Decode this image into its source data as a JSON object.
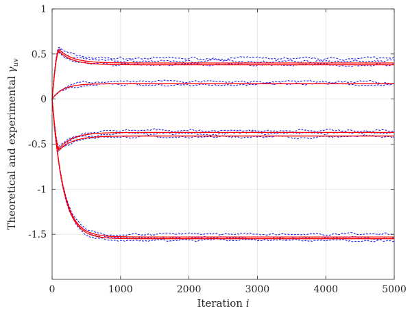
{
  "chart_data": {
    "type": "line",
    "title": "",
    "xlabel": "Iteration i",
    "xlabel_text": "Iteration ",
    "xlabel_var": "i",
    "ylabel": "Theoretical and experimental γ_uv",
    "ylabel_text": "Theoretical and experimental ",
    "ylabel_var": "γ",
    "ylabel_sub": "uv",
    "xlim": [
      0,
      5000
    ],
    "ylim": [
      -2,
      1
    ],
    "xticks": [
      0,
      1000,
      2000,
      3000,
      4000,
      5000
    ],
    "xtick_labels": [
      "0",
      "1000",
      "2000",
      "3000",
      "4000",
      "5000"
    ],
    "yticks": [
      1,
      0.5,
      0,
      -0.5,
      -1,
      -1.5
    ],
    "ytick_labels": [
      "1",
      "0.5",
      "0",
      "-0.5",
      "-1",
      "-1.5"
    ],
    "grid": true,
    "legend": "none",
    "theoretical_color": "#ff0000",
    "experimental_color": "#2222ee",
    "series": [
      {
        "kind": "theoretical",
        "steady": 0.38,
        "peak": 0.53,
        "peak_x": 100
      },
      {
        "kind": "theoretical",
        "steady": 0.4,
        "peak": 0.55,
        "peak_x": 100
      },
      {
        "kind": "theoretical",
        "steady": 0.17,
        "peak": 0.17,
        "peak_x": 0
      },
      {
        "kind": "theoretical",
        "steady": -0.37,
        "peak": -0.55,
        "peak_x": 100
      },
      {
        "kind": "theoretical",
        "steady": -0.41,
        "peak": -0.57,
        "peak_x": 100
      },
      {
        "kind": "theoretical",
        "steady": -1.53,
        "peak": -1.53,
        "peak_x": 0
      },
      {
        "kind": "theoretical",
        "steady": -1.55,
        "peak": -1.55,
        "peak_x": 0
      },
      {
        "kind": "experimental",
        "steady": 0.45,
        "peak": 0.57,
        "peak_x": 100
      },
      {
        "kind": "experimental",
        "steady": 0.42,
        "peak": 0.56,
        "peak_x": 110
      },
      {
        "kind": "experimental",
        "steady": 0.38,
        "peak": 0.52,
        "peak_x": 90
      },
      {
        "kind": "experimental",
        "steady": 0.19,
        "peak": 0.19,
        "peak_x": 0
      },
      {
        "kind": "experimental",
        "steady": 0.16,
        "peak": 0.16,
        "peak_x": 0
      },
      {
        "kind": "experimental",
        "steady": -0.35,
        "peak": -0.52,
        "peak_x": 100
      },
      {
        "kind": "experimental",
        "steady": -0.38,
        "peak": -0.56,
        "peak_x": 110
      },
      {
        "kind": "experimental",
        "steady": -0.42,
        "peak": -0.58,
        "peak_x": 90
      },
      {
        "kind": "experimental",
        "steady": -1.5,
        "peak": -1.5,
        "peak_x": 0
      },
      {
        "kind": "experimental",
        "steady": -1.54,
        "peak": -1.54,
        "peak_x": 0
      },
      {
        "kind": "experimental",
        "steady": -1.57,
        "peak": -1.57,
        "peak_x": 0
      }
    ]
  }
}
